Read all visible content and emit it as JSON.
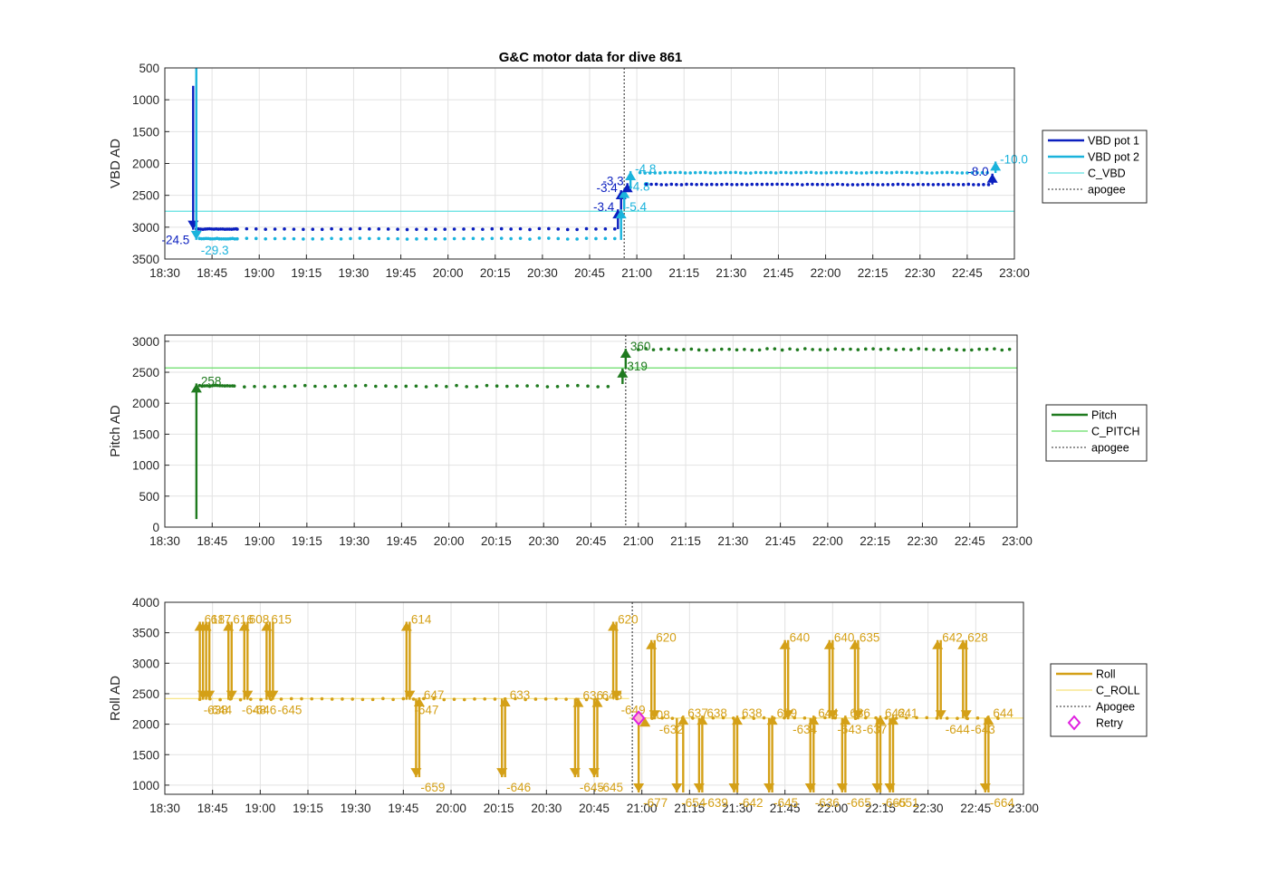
{
  "figure_title": "G&C motor data for dive 861",
  "colors": {
    "vbd1": "#0b1fbf",
    "vbd2": "#1ab3dc",
    "c_vbd": "#5fe0e0",
    "pitch": "#1f7a1f",
    "c_pitch": "#66dd66",
    "roll": "#d4a017",
    "c_roll": "#f7e27a",
    "apogee": "#555555",
    "retry": "#e020e0"
  },
  "chart_data": [
    {
      "type": "line",
      "title": "G&C motor data for dive 861",
      "ylabel": "VBD AD",
      "xlabel": "",
      "y_reversed": true,
      "ylim": [
        500,
        3500
      ],
      "yticks": [
        "500",
        "1000",
        "1500",
        "2000",
        "2500",
        "3000",
        "3500"
      ],
      "ytick_values": [
        500,
        1000,
        1500,
        2000,
        2500,
        3000,
        3500
      ],
      "xlim": [
        "18:30",
        "23:00"
      ],
      "xticks": [
        "18:30",
        "18:45",
        "19:00",
        "19:15",
        "19:30",
        "19:45",
        "20:00",
        "20:15",
        "20:30",
        "20:45",
        "21:00",
        "21:15",
        "21:30",
        "21:45",
        "22:00",
        "22:15",
        "22:30",
        "22:45",
        "23:00"
      ],
      "grid": true,
      "legend": {
        "position": "right",
        "entries": [
          "VBD pot 1",
          "VBD pot 2",
          "C_VBD",
          "apogee"
        ]
      },
      "hlines": [
        {
          "name": "C_VBD",
          "y": 2750
        }
      ],
      "apogee": "20:56",
      "moves": [
        {
          "series": "VBD pot 1",
          "t": "18:39",
          "from": 780,
          "to": 3040,
          "label": "-24.5",
          "label_side": "left"
        },
        {
          "series": "VBD pot 2",
          "t": "18:40",
          "from": 500,
          "to": 3200,
          "label": "-29.3",
          "label_side": "right"
        },
        {
          "series": "VBD pot 1",
          "t": "20:54",
          "from": 3030,
          "to": 2720,
          "label": "-3.4",
          "label_side": "left"
        },
        {
          "series": "VBD pot 2",
          "t": "20:55",
          "from": 3200,
          "to": 2720,
          "label": "-5.4",
          "label_side": "right"
        },
        {
          "series": "VBD pot 1",
          "t": "20:55",
          "from": 2720,
          "to": 2420,
          "label": "-3.4",
          "label_side": "left"
        },
        {
          "series": "VBD pot 2",
          "t": "20:56",
          "from": 2720,
          "to": 2400,
          "label": "-4.8",
          "label_side": "right"
        },
        {
          "series": "VBD pot 1",
          "t": "20:57",
          "from": 2420,
          "to": 2310,
          "label": "-3.3",
          "label_side": "left"
        },
        {
          "series": "VBD pot 2",
          "t": "20:58",
          "from": 2400,
          "to": 2120,
          "label": "-4.8",
          "label_side": "right"
        },
        {
          "series": "VBD pot 1",
          "t": "22:53",
          "from": 2330,
          "to": 2160,
          "label": "-8.0",
          "label_side": "left"
        },
        {
          "series": "VBD pot 2",
          "t": "22:54",
          "from": 2150,
          "to": 1970,
          "label": "-10.0",
          "label_side": "right"
        }
      ],
      "series": [
        {
          "name": "VBD pot 1",
          "segments": [
            {
              "t0": "18:40",
              "t1": "18:53",
              "step": 0.7,
              "y": 3030,
              "jitter": 5
            },
            {
              "t0": "18:53",
              "t1": "20:53",
              "step": 3.0,
              "y": 3030,
              "jitter": 8
            },
            {
              "t0": "21:03",
              "t1": "22:52",
              "step": 1.6,
              "y": 2330,
              "jitter": 5
            }
          ]
        },
        {
          "name": "VBD pot 2",
          "segments": [
            {
              "t0": "18:41",
              "t1": "18:53",
              "step": 0.7,
              "y": 3180,
              "jitter": 5
            },
            {
              "t0": "18:53",
              "t1": "20:53",
              "step": 3.0,
              "y": 3180,
              "jitter": 8
            },
            {
              "t0": "21:01",
              "t1": "22:52",
              "step": 1.6,
              "y": 2145,
              "jitter": 5
            }
          ]
        }
      ]
    },
    {
      "type": "line",
      "title": "",
      "ylabel": "Pitch AD",
      "xlabel": "",
      "ylim": [
        0,
        3100
      ],
      "yticks": [
        "0",
        "500",
        "1000",
        "1500",
        "2000",
        "2500",
        "3000"
      ],
      "ytick_values": [
        0,
        500,
        1000,
        1500,
        2000,
        2500,
        3000
      ],
      "xlim": [
        "18:30",
        "23:00"
      ],
      "xticks": [
        "18:30",
        "18:45",
        "19:00",
        "19:15",
        "19:30",
        "19:45",
        "20:00",
        "20:15",
        "20:30",
        "20:45",
        "21:00",
        "21:15",
        "21:30",
        "21:45",
        "22:00",
        "22:15",
        "22:30",
        "22:45",
        "23:00"
      ],
      "grid": true,
      "legend": {
        "position": "right",
        "entries": [
          "Pitch",
          "C_PITCH",
          "apogee"
        ]
      },
      "hlines": [
        {
          "name": "C_PITCH",
          "y": 2570
        }
      ],
      "apogee": "20:56",
      "moves": [
        {
          "series": "Pitch",
          "t": "18:40",
          "from": 130,
          "to": 2320,
          "label": "258",
          "label_side": "right"
        },
        {
          "series": "Pitch",
          "t": "20:55",
          "from": 2310,
          "to": 2560,
          "label": "319",
          "label_side": "right"
        },
        {
          "series": "Pitch",
          "t": "20:56",
          "from": 2560,
          "to": 2880,
          "label": "360",
          "label_side": "right"
        }
      ],
      "series": [
        {
          "name": "Pitch",
          "segments": [
            {
              "t0": "18:41",
              "t1": "18:52",
              "step": 0.8,
              "y": 2280,
              "jitter": 8
            },
            {
              "t0": "18:52",
              "t1": "20:52",
              "step": 3.2,
              "y": 2275,
              "jitter": 12
            },
            {
              "t0": "21:00",
              "t1": "22:58",
              "step": 2.4,
              "y": 2870,
              "jitter": 12
            }
          ]
        }
      ]
    },
    {
      "type": "line",
      "title": "",
      "ylabel": "Roll AD",
      "xlabel": "",
      "ylim": [
        850,
        4000
      ],
      "yticks": [
        "1000",
        "1500",
        "2000",
        "2500",
        "3000",
        "3500",
        "4000"
      ],
      "ytick_values": [
        1000,
        1500,
        2000,
        2500,
        3000,
        3500,
        4000
      ],
      "xlim": [
        "18:30",
        "23:00"
      ],
      "xticks": [
        "18:30",
        "18:45",
        "19:00",
        "19:15",
        "19:30",
        "19:45",
        "20:00",
        "20:15",
        "20:30",
        "20:45",
        "21:00",
        "21:15",
        "21:30",
        "21:45",
        "22:00",
        "22:15",
        "22:30",
        "22:45",
        "23:00"
      ],
      "grid": true,
      "legend": {
        "position": "right",
        "entries": [
          "Roll",
          "C_ROLL",
          "Apogee",
          "Retry"
        ]
      },
      "hlines": [
        {
          "name": "C_ROLL",
          "t0": "18:30",
          "t1": "20:56",
          "y": 2420
        },
        {
          "name": "C_ROLL",
          "t0": "20:56",
          "t1": "23:00",
          "y": 2100
        }
      ],
      "apogee": "20:57",
      "retry": [
        {
          "t": "20:59",
          "y": 2100
        }
      ],
      "moves": [
        {
          "series": "Roll",
          "t": "18:41",
          "from": 2400,
          "to": 3680,
          "label": "618",
          "label_side": "right"
        },
        {
          "series": "Roll",
          "t": "18:42",
          "from": 3680,
          "to": 2400,
          "label": "-644",
          "label_side": "right"
        },
        {
          "series": "Roll",
          "t": "18:43",
          "from": 2400,
          "to": 3680,
          "label": "617",
          "label_side": "right"
        },
        {
          "series": "Roll",
          "t": "18:44",
          "from": 3680,
          "to": 2400,
          "label": "",
          "label_side": "right"
        },
        {
          "series": "Roll",
          "t": "18:50",
          "from": 2400,
          "to": 3680,
          "label": "616",
          "label_side": "right"
        },
        {
          "series": "Roll",
          "t": "18:51",
          "from": 3680,
          "to": 2400,
          "label": "-638",
          "label_side": "left"
        },
        {
          "series": "Roll",
          "t": "18:55",
          "from": 2400,
          "to": 3680,
          "label": "608",
          "label_side": "right"
        },
        {
          "series": "Roll",
          "t": "18:56",
          "from": 3680,
          "to": 2400,
          "label": "-646",
          "label_side": "right"
        },
        {
          "series": "Roll",
          "t": "19:02",
          "from": 2400,
          "to": 3680,
          "label": "615",
          "label_side": "right"
        },
        {
          "series": "Roll",
          "t": "19:03",
          "from": 3680,
          "to": 2400,
          "label": "-648",
          "label_side": "left"
        },
        {
          "series": "Roll",
          "t": "19:04",
          "from": 3680,
          "to": 2400,
          "label": "-645",
          "label_side": "right"
        },
        {
          "series": "Roll",
          "t": "19:46",
          "from": 2400,
          "to": 3680,
          "label": "614",
          "label_side": "right"
        },
        {
          "series": "Roll",
          "t": "19:47",
          "from": 3680,
          "to": 2400,
          "label": "-647",
          "label_side": "right"
        },
        {
          "series": "Roll",
          "t": "19:49",
          "from": 2420,
          "to": 1130,
          "label": "-659",
          "label_side": "right"
        },
        {
          "series": "Roll",
          "t": "19:50",
          "from": 1130,
          "to": 2440,
          "label": "647",
          "label_side": "right"
        },
        {
          "series": "Roll",
          "t": "20:16",
          "from": 2420,
          "to": 1130,
          "label": "-646",
          "label_side": "right"
        },
        {
          "series": "Roll",
          "t": "20:17",
          "from": 1130,
          "to": 2440,
          "label": "633",
          "label_side": "right"
        },
        {
          "series": "Roll",
          "t": "20:39",
          "from": 2420,
          "to": 1130,
          "label": "-645",
          "label_side": "right"
        },
        {
          "series": "Roll",
          "t": "20:40",
          "from": 1130,
          "to": 2430,
          "label": "636",
          "label_side": "right"
        },
        {
          "series": "Roll",
          "t": "20:45",
          "from": 2420,
          "to": 1130,
          "label": "-645",
          "label_side": "right"
        },
        {
          "series": "Roll",
          "t": "20:46",
          "from": 1130,
          "to": 2430,
          "label": "648",
          "label_side": "right"
        },
        {
          "series": "Roll",
          "t": "20:51",
          "from": 2420,
          "to": 3680,
          "label": "620",
          "label_side": "right"
        },
        {
          "series": "Roll",
          "t": "20:52",
          "from": 3680,
          "to": 2400,
          "label": "-649",
          "label_side": "right"
        },
        {
          "series": "Roll",
          "t": "20:59",
          "from": 2100,
          "to": 880,
          "label": "-677",
          "label_side": "right"
        },
        {
          "series": "Roll",
          "t": "21:01",
          "from": 2100,
          "to": 2110,
          "label": "608",
          "label_side": "right"
        },
        {
          "series": "Roll",
          "t": "21:03",
          "from": 2100,
          "to": 3380,
          "label": "620",
          "label_side": "right"
        },
        {
          "series": "Roll",
          "t": "21:04",
          "from": 3380,
          "to": 2080,
          "label": "-632",
          "label_side": "right"
        },
        {
          "series": "Roll",
          "t": "21:11",
          "from": 2100,
          "to": 880,
          "label": "-654",
          "label_side": "right"
        },
        {
          "series": "Roll",
          "t": "21:13",
          "from": 880,
          "to": 2140,
          "label": "637",
          "label_side": "right"
        },
        {
          "series": "Roll",
          "t": "21:18",
          "from": 2100,
          "to": 880,
          "label": "-639",
          "label_side": "right"
        },
        {
          "series": "Roll",
          "t": "21:19",
          "from": 880,
          "to": 2140,
          "label": "638",
          "label_side": "right"
        },
        {
          "series": "Roll",
          "t": "21:29",
          "from": 2100,
          "to": 880,
          "label": "-642",
          "label_side": "right"
        },
        {
          "series": "Roll",
          "t": "21:30",
          "from": 880,
          "to": 2140,
          "label": "638",
          "label_side": "right"
        },
        {
          "series": "Roll",
          "t": "21:40",
          "from": 2100,
          "to": 880,
          "label": "-645",
          "label_side": "right"
        },
        {
          "series": "Roll",
          "t": "21:41",
          "from": 880,
          "to": 2140,
          "label": "639",
          "label_side": "right"
        },
        {
          "series": "Roll",
          "t": "21:45",
          "from": 2100,
          "to": 3380,
          "label": "640",
          "label_side": "right"
        },
        {
          "series": "Roll",
          "t": "21:46",
          "from": 3380,
          "to": 2080,
          "label": "-634",
          "label_side": "right"
        },
        {
          "series": "Roll",
          "t": "21:53",
          "from": 2100,
          "to": 880,
          "label": "-636",
          "label_side": "right"
        },
        {
          "series": "Roll",
          "t": "21:54",
          "from": 880,
          "to": 2140,
          "label": "644",
          "label_side": "right"
        },
        {
          "series": "Roll",
          "t": "21:59",
          "from": 2100,
          "to": 3380,
          "label": "640",
          "label_side": "right"
        },
        {
          "series": "Roll",
          "t": "22:00",
          "from": 3380,
          "to": 2080,
          "label": "-643",
          "label_side": "right"
        },
        {
          "series": "Roll",
          "t": "22:03",
          "from": 2100,
          "to": 880,
          "label": "-665",
          "label_side": "right"
        },
        {
          "series": "Roll",
          "t": "22:04",
          "from": 880,
          "to": 2140,
          "label": "636",
          "label_side": "right"
        },
        {
          "series": "Roll",
          "t": "22:07",
          "from": 2100,
          "to": 3380,
          "label": "635",
          "label_side": "right"
        },
        {
          "series": "Roll",
          "t": "22:08",
          "from": 3380,
          "to": 2080,
          "label": "-637",
          "label_side": "right"
        },
        {
          "series": "Roll",
          "t": "22:14",
          "from": 2100,
          "to": 880,
          "label": "-665",
          "label_side": "right"
        },
        {
          "series": "Roll",
          "t": "22:15",
          "from": 880,
          "to": 2140,
          "label": "642",
          "label_side": "right"
        },
        {
          "series": "Roll",
          "t": "22:18",
          "from": 2100,
          "to": 880,
          "label": "-651",
          "label_side": "right"
        },
        {
          "series": "Roll",
          "t": "22:19",
          "from": 880,
          "to": 2140,
          "label": "641",
          "label_side": "right"
        },
        {
          "series": "Roll",
          "t": "22:33",
          "from": 2100,
          "to": 3380,
          "label": "642",
          "label_side": "right"
        },
        {
          "series": "Roll",
          "t": "22:34",
          "from": 3380,
          "to": 2080,
          "label": "-644",
          "label_side": "right"
        },
        {
          "series": "Roll",
          "t": "22:41",
          "from": 2100,
          "to": 3380,
          "label": "628",
          "label_side": "right"
        },
        {
          "series": "Roll",
          "t": "22:42",
          "from": 3380,
          "to": 2080,
          "label": "-643",
          "label_side": "right"
        },
        {
          "series": "Roll",
          "t": "22:48",
          "from": 2100,
          "to": 880,
          "label": "-664",
          "label_side": "right"
        },
        {
          "series": "Roll",
          "t": "22:49",
          "from": 880,
          "to": 2140,
          "label": "644",
          "label_side": "right"
        }
      ],
      "series": [
        {
          "name": "Roll",
          "segments": [
            {
              "t0": "18:41",
              "t1": "20:53",
              "step": 3.2,
              "y": 2410,
              "jitter": 10
            },
            {
              "t0": "21:00",
              "t1": "22:55",
              "step": 3.2,
              "y": 2100,
              "jitter": 8
            }
          ]
        }
      ]
    }
  ]
}
